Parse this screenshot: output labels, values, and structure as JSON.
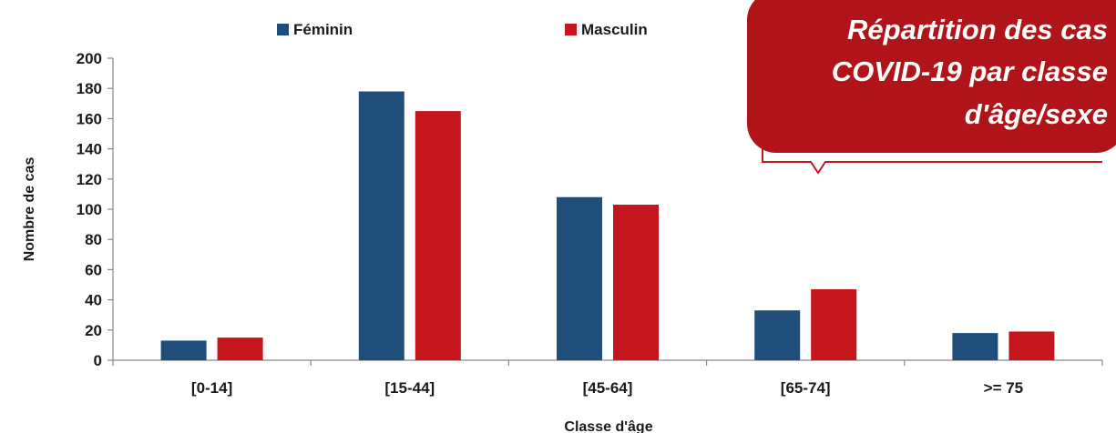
{
  "chart_data": {
    "type": "bar",
    "title": "",
    "xlabel": "Classe d'âge",
    "ylabel": "Nombre de cas",
    "categories": [
      "[0-14]",
      "[15-44]",
      "[45-64]",
      "[65-74]",
      ">= 75"
    ],
    "series": [
      {
        "name": "Féminin",
        "color": "#1f4e7a",
        "values": [
          13,
          178,
          108,
          33,
          18
        ]
      },
      {
        "name": "Masculin",
        "color": "#c4161c",
        "values": [
          15,
          165,
          103,
          47,
          19
        ]
      }
    ],
    "ylim": [
      0,
      200
    ],
    "yticks": [
      0,
      20,
      40,
      60,
      80,
      100,
      120,
      140,
      160,
      180,
      200
    ],
    "legend_position": "top",
    "grid": false
  },
  "callout": {
    "lines": [
      "Répartition des cas",
      "COVID-19 par classe",
      "d'âge/sexe"
    ],
    "color": "#b01419"
  }
}
